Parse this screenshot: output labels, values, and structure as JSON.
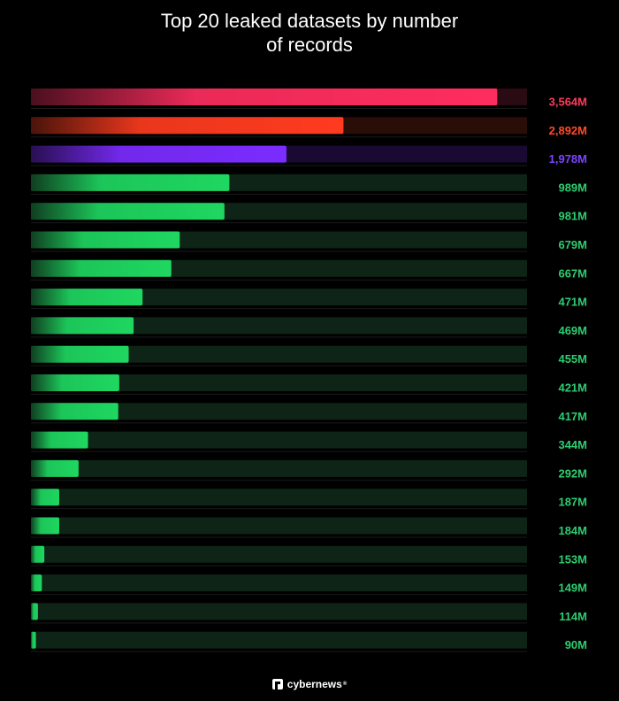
{
  "chart_data": {
    "type": "bar",
    "orientation": "horizontal",
    "title": "Top 20 leaked datasets by number of records",
    "title_lines": [
      "Top 20 leaked datasets by number",
      "of records"
    ],
    "values": [
      3564,
      2892,
      1978,
      989,
      981,
      679,
      667,
      471,
      469,
      455,
      421,
      417,
      344,
      292,
      187,
      184,
      153,
      149,
      114,
      90
    ],
    "value_labels": [
      "3,564M",
      "2,892M",
      "1,978M",
      "989M",
      "981M",
      "679M",
      "667M",
      "471M",
      "469M",
      "455M",
      "421M",
      "417M",
      "344M",
      "292M",
      "187M",
      "184M",
      "153M",
      "149M",
      "114M",
      "90M"
    ],
    "fill_fractions": [
      0.94,
      0.63,
      0.515,
      0.4,
      0.39,
      0.3,
      0.283,
      0.225,
      0.207,
      0.197,
      0.178,
      0.176,
      0.115,
      0.096,
      0.057,
      0.057,
      0.027,
      0.022,
      0.014,
      0.01
    ],
    "bar_colors": [
      "#ff2d5f",
      "#ff3b1f",
      "#7b2cff",
      "#1ed760",
      "#1ed760",
      "#1ed760",
      "#1ed760",
      "#1ed760",
      "#1ed760",
      "#1ed760",
      "#1ed760",
      "#1ed760",
      "#1ed760",
      "#1ed760",
      "#1ed760",
      "#1ed760",
      "#1ed760",
      "#1ed760",
      "#1ed760",
      "#1ed760"
    ],
    "track_colors": [
      "#2a0a13",
      "#2a0d07",
      "#1a0a33",
      "#0d2416",
      "#0d2416",
      "#0d2416",
      "#0d2416",
      "#0d2416",
      "#0d2416",
      "#0d2416",
      "#0d2416",
      "#0d2416",
      "#0d2416",
      "#0d2416",
      "#0d2416",
      "#0d2416",
      "#0d2416",
      "#0d2416",
      "#0d2416",
      "#0d2416"
    ],
    "label_colors": [
      "#ff3a5c",
      "#ff4a2a",
      "#7b44ff",
      "#2ecc71",
      "#2ecc71",
      "#2ecc71",
      "#2ecc71",
      "#2ecc71",
      "#2ecc71",
      "#2ecc71",
      "#2ecc71",
      "#2ecc71",
      "#2ecc71",
      "#2ecc71",
      "#2ecc71",
      "#2ecc71",
      "#2ecc71",
      "#2ecc71",
      "#2ecc71",
      "#2ecc71"
    ]
  },
  "footer": {
    "brand": "cybernews",
    "mark": "®",
    "icon": "cybernews-logo-icon"
  }
}
